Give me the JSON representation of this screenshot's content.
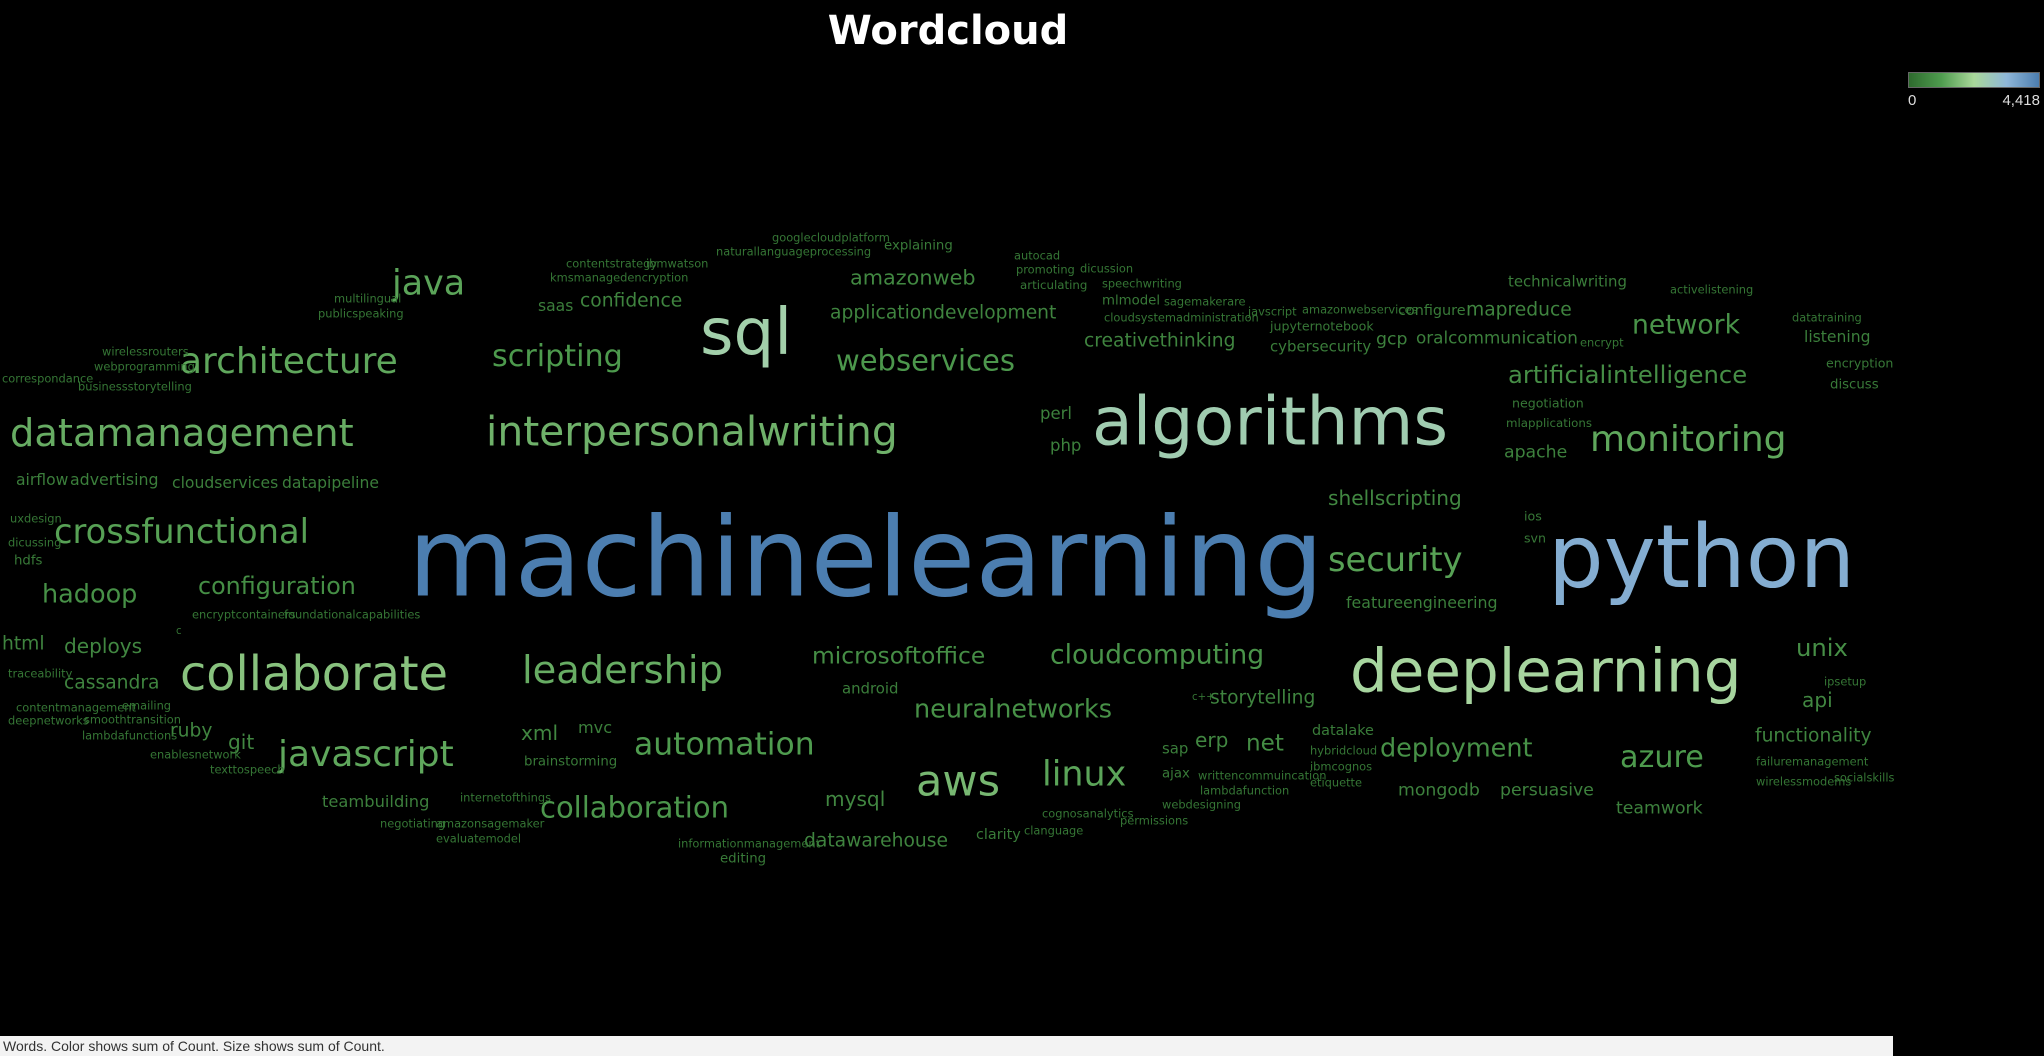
{
  "title": "Wordcloud",
  "legend": {
    "min_label": "0",
    "max_label": "4,418",
    "min": 0,
    "max": 4418,
    "colors": [
      "#2e6b2e",
      "#4f9c4f",
      "#a9d89a",
      "#8fb7d8",
      "#4c7eb0"
    ]
  },
  "footer": "Words.  Color shows sum of Count.  Size shows sum of Count.",
  "chart_data": {
    "type": "wordcloud",
    "title": "Wordcloud",
    "color_encoding": "sum of Count",
    "size_encoding": "sum of Count",
    "color_range": [
      0,
      4418
    ],
    "words": [
      {
        "word": "machinelearning",
        "count": 4418
      },
      {
        "word": "python",
        "count": 3500
      },
      {
        "word": "algorithms",
        "count": 2600
      },
      {
        "word": "deeplearning",
        "count": 2300
      },
      {
        "word": "sql",
        "count": 2500
      },
      {
        "word": "collaborate",
        "count": 1800
      },
      {
        "word": "interpersonalwriting",
        "count": 1500
      },
      {
        "word": "datamanagement",
        "count": 1400
      },
      {
        "word": "leadership",
        "count": 1400
      },
      {
        "word": "architecture",
        "count": 1300
      },
      {
        "word": "monitoring",
        "count": 1300
      },
      {
        "word": "aws",
        "count": 1600
      },
      {
        "word": "javascript",
        "count": 1300
      },
      {
        "word": "java",
        "count": 1250
      },
      {
        "word": "crossfunctional",
        "count": 1200
      },
      {
        "word": "security",
        "count": 1200
      },
      {
        "word": "automation",
        "count": 1100
      },
      {
        "word": "linux",
        "count": 1250
      },
      {
        "word": "scripting",
        "count": 1050
      },
      {
        "word": "webservices",
        "count": 1000
      },
      {
        "word": "collaboration",
        "count": 1000
      },
      {
        "word": "azure",
        "count": 1050
      },
      {
        "word": "network",
        "count": 900
      },
      {
        "word": "cloudcomputing",
        "count": 900
      },
      {
        "word": "neuralnetworks",
        "count": 850
      },
      {
        "word": "deployment",
        "count": 850
      },
      {
        "word": "hadoop",
        "count": 850
      },
      {
        "word": "artificialintelligence",
        "count": 800
      },
      {
        "word": "configuration",
        "count": 780
      },
      {
        "word": "microsoftoffice",
        "count": 760
      },
      {
        "word": "unix",
        "count": 800
      },
      {
        "word": "net",
        "count": 750
      },
      {
        "word": "amazonweb",
        "count": 650
      },
      {
        "word": "shellscripting",
        "count": 620
      },
      {
        "word": "applicationdevelopment",
        "count": 560
      },
      {
        "word": "mysql",
        "count": 620
      },
      {
        "word": "deploys",
        "count": 620
      },
      {
        "word": "cassandra",
        "count": 560
      },
      {
        "word": "storytelling",
        "count": 560
      },
      {
        "word": "datawarehouse",
        "count": 560
      },
      {
        "word": "confidence",
        "count": 560
      },
      {
        "word": "creativethinking",
        "count": 560
      },
      {
        "word": "mapreduce",
        "count": 560
      },
      {
        "word": "api",
        "count": 620
      },
      {
        "word": "xml",
        "count": 620
      },
      {
        "word": "git",
        "count": 620
      },
      {
        "word": "erp",
        "count": 620
      },
      {
        "word": "functionality",
        "count": 560
      },
      {
        "word": "html",
        "count": 560
      },
      {
        "word": "ruby",
        "count": 560
      },
      {
        "word": "mongodb",
        "count": 500
      },
      {
        "word": "persuasive",
        "count": 500
      },
      {
        "word": "teamwork",
        "count": 500
      },
      {
        "word": "apache",
        "count": 500
      },
      {
        "word": "oralcommunication",
        "count": 480
      },
      {
        "word": "gcp",
        "count": 500
      },
      {
        "word": "teambuilding",
        "count": 460
      },
      {
        "word": "featureengineering",
        "count": 440
      },
      {
        "word": "advertising",
        "count": 440
      },
      {
        "word": "listening",
        "count": 430
      },
      {
        "word": "cloudservices",
        "count": 430
      },
      {
        "word": "datapipeline",
        "count": 430
      },
      {
        "word": "airflow",
        "count": 430
      },
      {
        "word": "perl",
        "count": 470
      },
      {
        "word": "php",
        "count": 470
      },
      {
        "word": "mvc",
        "count": 450
      },
      {
        "word": "cybersecurity",
        "count": 400
      },
      {
        "word": "technicalwriting",
        "count": 400
      },
      {
        "word": "saas",
        "count": 430
      },
      {
        "word": "explaining",
        "count": 330
      },
      {
        "word": "android",
        "count": 400
      },
      {
        "word": "clarity",
        "count": 380
      },
      {
        "word": "sap",
        "count": 400
      },
      {
        "word": "configure",
        "count": 380
      },
      {
        "word": "editing",
        "count": 330
      },
      {
        "word": "hdfs",
        "count": 330
      },
      {
        "word": "datalake",
        "count": 380
      },
      {
        "word": "brainstorming",
        "count": 330
      },
      {
        "word": "ajax",
        "count": 330
      },
      {
        "word": "mlmodel",
        "count": 330
      },
      {
        "word": "discuss",
        "count": 330
      },
      {
        "word": "negotiation",
        "count": 300
      },
      {
        "word": "jupyternotebook",
        "count": 300
      },
      {
        "word": "encryption",
        "count": 300
      },
      {
        "word": "ios",
        "count": 300
      },
      {
        "word": "svn",
        "count": 300
      },
      {
        "word": "mlapplications",
        "count": 270
      },
      {
        "word": "articulating",
        "count": 270
      },
      {
        "word": "autocad",
        "count": 250
      },
      {
        "word": "promoting",
        "count": 250
      },
      {
        "word": "dicussion",
        "count": 250
      },
      {
        "word": "speechwriting",
        "count": 250
      },
      {
        "word": "sagemakerare",
        "count": 250
      },
      {
        "word": "cloudsystemadministration",
        "count": 250
      },
      {
        "word": "javscript",
        "count": 250
      },
      {
        "word": "amazonwebservices",
        "count": 250
      },
      {
        "word": "encrypt",
        "count": 250
      },
      {
        "word": "datatraining",
        "count": 250
      },
      {
        "word": "activelistening",
        "count": 250
      },
      {
        "word": "googlecloudplatform",
        "count": 250
      },
      {
        "word": "naturallanguageprocessing",
        "count": 250
      },
      {
        "word": "contentstrategy",
        "count": 250
      },
      {
        "word": "ibmwatson",
        "count": 250
      },
      {
        "word": "kmsmanagedencryption",
        "count": 250
      },
      {
        "word": "multilingual",
        "count": 250
      },
      {
        "word": "publicspeaking",
        "count": 250
      },
      {
        "word": "wirelessrouters",
        "count": 250
      },
      {
        "word": "webprogramming",
        "count": 250
      },
      {
        "word": "correspondance",
        "count": 250
      },
      {
        "word": "businessstorytelling",
        "count": 250
      },
      {
        "word": "uxdesign",
        "count": 250
      },
      {
        "word": "dicussing",
        "count": 250
      },
      {
        "word": "encryptcontainers",
        "count": 250
      },
      {
        "word": "foundationalcapabilities",
        "count": 250
      },
      {
        "word": "c",
        "count": 200
      },
      {
        "word": "traceability",
        "count": 250
      },
      {
        "word": "contentmanagement",
        "count": 250
      },
      {
        "word": "emailing",
        "count": 250
      },
      {
        "word": "deepnetworks",
        "count": 250
      },
      {
        "word": "smoothtransition",
        "count": 250
      },
      {
        "word": "lambdafunctions",
        "count": 250
      },
      {
        "word": "enablesnetwork",
        "count": 250
      },
      {
        "word": "texttospeech",
        "count": 250
      },
      {
        "word": "internetofthings",
        "count": 250
      },
      {
        "word": "negotiating",
        "count": 250
      },
      {
        "word": "amazonsagemaker",
        "count": 250
      },
      {
        "word": "evaluatemodel",
        "count": 250
      },
      {
        "word": "informationmanagement",
        "count": 250
      },
      {
        "word": "clanguage",
        "count": 250
      },
      {
        "word": "cognosanalytics",
        "count": 250
      },
      {
        "word": "permissions",
        "count": 250
      },
      {
        "word": "webdesigning",
        "count": 250
      },
      {
        "word": "writtencommuincation",
        "count": 250
      },
      {
        "word": "lambdafunction",
        "count": 250
      },
      {
        "word": "hybridcloud",
        "count": 250
      },
      {
        "word": "ibmcognos",
        "count": 250
      },
      {
        "word": "etiquette",
        "count": 250
      },
      {
        "word": "c++",
        "count": 200
      },
      {
        "word": "ipsetup",
        "count": 250
      },
      {
        "word": "failuremanagement",
        "count": 250
      },
      {
        "word": "wirelessmodems",
        "count": 250
      },
      {
        "word": "socialskills",
        "count": 250
      }
    ]
  }
}
